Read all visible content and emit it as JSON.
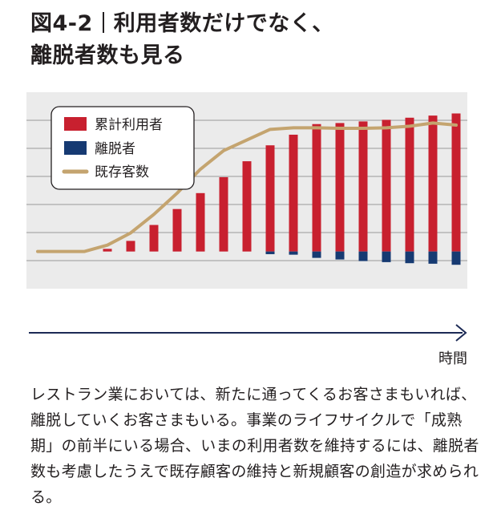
{
  "figure": {
    "number": "図4-2",
    "title_line1": "利用者数だけでなく、",
    "title_line2": "離脱者数も見る"
  },
  "axis": {
    "x_label": "時間"
  },
  "caption": "レストラン業においては、新たに通ってくるお客さまもいれば、離脱していくお客さまもいる。事業のライフサイクルで「成熟期」の前半にいる場合、いまの利用者数を維持するには、離脱者数も考慮したうえで既存顧客の維持と新規顧客の創造が求められる。",
  "colors": {
    "cumulative": "#c8202f",
    "churn": "#163a72",
    "existing": "#c4a46f",
    "background": "#ebebeb",
    "axis": "#1c2a55"
  },
  "chart_data": {
    "type": "bar",
    "legend_position": "top-left",
    "grid": true,
    "x": [
      0,
      1,
      2,
      3,
      4,
      5,
      6,
      7,
      8,
      9,
      10,
      11,
      12,
      13,
      14,
      15,
      16,
      17,
      18
    ],
    "ylim": [
      -7,
      30
    ],
    "series": [
      {
        "name": "累計利用者",
        "kind": "bar",
        "values": [
          0,
          0,
          0,
          0.5,
          2,
          5,
          8,
          11,
          14,
          17,
          20,
          22,
          24,
          24.2,
          24.5,
          24.8,
          25.2,
          25.6,
          26
        ]
      },
      {
        "name": "離脱者",
        "kind": "bar",
        "values": [
          0,
          0,
          0,
          0,
          0,
          0,
          0,
          0,
          0,
          0,
          -0.5,
          -0.6,
          -1.2,
          -1.5,
          -1.8,
          -2.0,
          -2.2,
          -2.3,
          -2.5
        ]
      },
      {
        "name": "既存客数",
        "kind": "line",
        "values": [
          0,
          0,
          0,
          1.2,
          3.5,
          7,
          11,
          15.5,
          19,
          21,
          23,
          23.3,
          23.3,
          23.2,
          23.2,
          23.3,
          23.6,
          24.2,
          23.8
        ]
      }
    ]
  }
}
